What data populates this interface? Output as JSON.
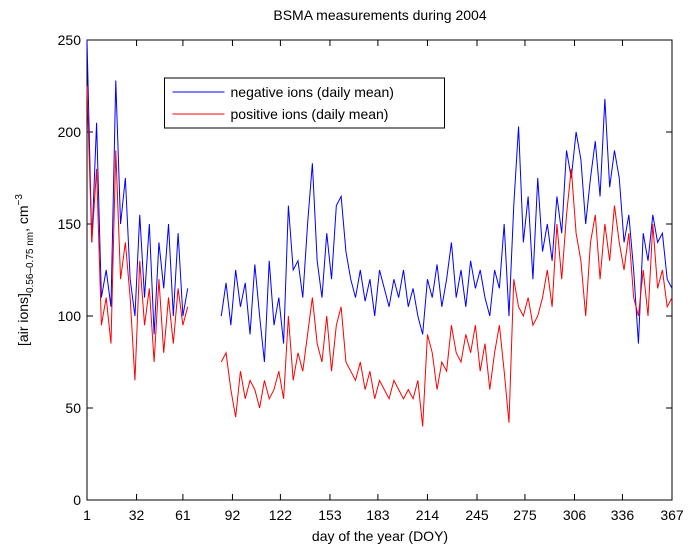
{
  "chart_data": {
    "type": "line",
    "title": "BSMA measurements during 2004",
    "xlabel": "day of the year (DOY)",
    "ylabel_parts": [
      "[air ions]",
      "0.56–0.75 nm",
      ", cm",
      "−3"
    ],
    "x": [
      1,
      4,
      7,
      10,
      13,
      16,
      19,
      22,
      25,
      28,
      31,
      34,
      37,
      40,
      43,
      46,
      49,
      52,
      55,
      58,
      61,
      64,
      75,
      85,
      88,
      91,
      94,
      97,
      100,
      103,
      106,
      109,
      112,
      115,
      118,
      121,
      124,
      127,
      130,
      133,
      136,
      139,
      142,
      145,
      148,
      151,
      154,
      157,
      160,
      163,
      166,
      169,
      172,
      175,
      178,
      181,
      184,
      187,
      190,
      193,
      196,
      199,
      202,
      205,
      208,
      211,
      214,
      217,
      220,
      223,
      226,
      229,
      232,
      235,
      238,
      241,
      244,
      247,
      250,
      253,
      256,
      259,
      262,
      265,
      268,
      271,
      274,
      277,
      280,
      283,
      286,
      289,
      292,
      295,
      298,
      301,
      304,
      307,
      310,
      313,
      316,
      319,
      322,
      325,
      328,
      331,
      334,
      337,
      340,
      343,
      346,
      349,
      352,
      355,
      358,
      361,
      364,
      367
    ],
    "series": [
      {
        "name": "negative ions (daily mean)",
        "color": "#0000ff",
        "values": [
          250,
          140,
          205,
          110,
          125,
          105,
          228,
          150,
          175,
          120,
          100,
          155,
          110,
          150,
          90,
          140,
          115,
          150,
          100,
          145,
          100,
          115,
          null,
          100,
          118,
          95,
          125,
          105,
          118,
          90,
          128,
          100,
          75,
          130,
          95,
          110,
          85,
          160,
          125,
          130,
          110,
          150,
          183,
          130,
          110,
          145,
          120,
          160,
          165,
          135,
          120,
          110,
          125,
          108,
          120,
          100,
          125,
          115,
          105,
          120,
          110,
          125,
          105,
          115,
          100,
          90,
          120,
          110,
          128,
          105,
          120,
          140,
          110,
          125,
          105,
          130,
          115,
          125,
          110,
          100,
          125,
          115,
          150,
          100,
          160,
          203,
          140,
          165,
          120,
          175,
          135,
          150,
          130,
          165,
          145,
          190,
          175,
          200,
          185,
          150,
          175,
          195,
          165,
          218,
          170,
          190,
          175,
          140,
          155,
          125,
          85,
          145,
          130,
          155,
          140,
          145,
          120,
          115
        ]
      },
      {
        "name": "positive ions (daily mean)",
        "color": "#ff0000",
        "values": [
          225,
          140,
          180,
          95,
          110,
          85,
          190,
          120,
          140,
          110,
          65,
          130,
          95,
          115,
          75,
          120,
          80,
          110,
          85,
          115,
          95,
          105,
          null,
          75,
          80,
          60,
          45,
          70,
          55,
          65,
          60,
          50,
          65,
          55,
          60,
          70,
          55,
          100,
          65,
          80,
          70,
          90,
          110,
          85,
          75,
          100,
          70,
          95,
          105,
          75,
          70,
          65,
          75,
          60,
          70,
          55,
          65,
          60,
          55,
          65,
          60,
          55,
          60,
          55,
          65,
          40,
          90,
          80,
          60,
          75,
          70,
          95,
          80,
          75,
          90,
          80,
          95,
          70,
          85,
          60,
          80,
          95,
          70,
          42,
          120,
          105,
          100,
          110,
          95,
          100,
          110,
          125,
          105,
          150,
          120,
          155,
          180,
          145,
          130,
          100,
          140,
          155,
          120,
          150,
          130,
          160,
          140,
          125,
          145,
          110,
          100,
          125,
          100,
          150,
          115,
          125,
          105,
          110
        ]
      }
    ],
    "xlim": [
      1,
      367
    ],
    "xticks": [
      1,
      32,
      61,
      92,
      122,
      153,
      183,
      214,
      245,
      275,
      306,
      336,
      367
    ],
    "ylim": [
      0,
      250
    ],
    "yticks": [
      0,
      50,
      100,
      150,
      200,
      250
    ],
    "legend": "upper center"
  }
}
